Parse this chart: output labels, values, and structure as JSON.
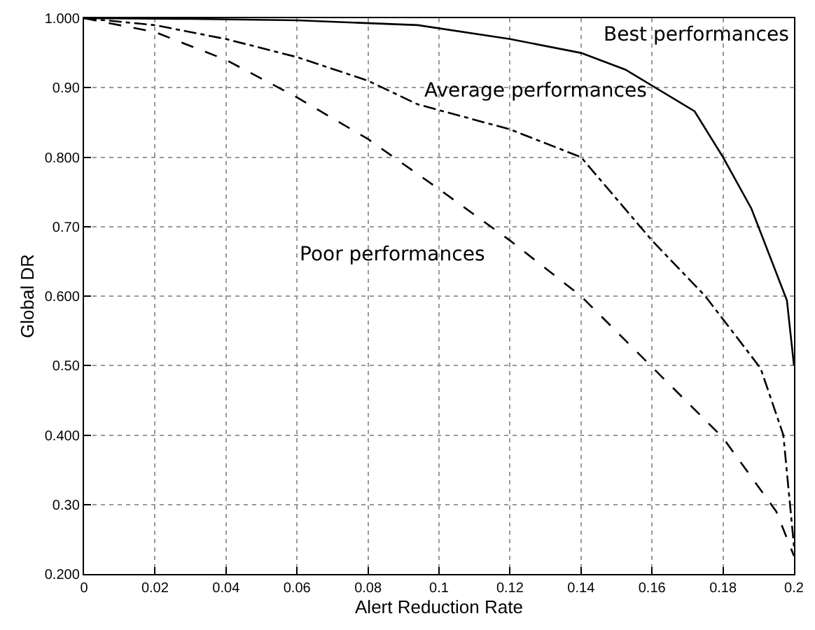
{
  "chart_data": {
    "type": "line",
    "xlabel": "Alert Reduction Rate",
    "ylabel": "Global DR",
    "xlim": [
      0,
      0.2
    ],
    "ylim": [
      0.2,
      1.0
    ],
    "xticks": [
      0,
      0.02,
      0.04,
      0.06,
      0.08,
      0.1,
      0.12,
      0.14,
      0.16,
      0.18,
      0.2
    ],
    "yticks": [
      {
        "value": 0.2,
        "label": "0.200"
      },
      {
        "value": 0.3,
        "label": "0.30"
      },
      {
        "value": 0.4,
        "label": "0.400"
      },
      {
        "value": 0.5,
        "label": "0.50"
      },
      {
        "value": 0.6,
        "label": "0.600"
      },
      {
        "value": 0.7,
        "label": "0.70"
      },
      {
        "value": 0.8,
        "label": "0.800"
      },
      {
        "value": 0.9,
        "label": "0.90"
      },
      {
        "value": 1.0,
        "label": "1.000"
      }
    ],
    "grid": true,
    "marker": "none",
    "series": [
      {
        "color": "#000000",
        "line_style": "solid",
        "x": [
          0,
          0.03,
          0.06,
          0.094,
          0.12,
          0.14,
          0.1525,
          0.172,
          0.18,
          0.188,
          0.193,
          0.198,
          0.2
        ],
        "values": [
          1.0,
          0.999,
          0.997,
          0.99,
          0.97,
          0.95,
          0.926,
          0.866,
          0.8,
          0.726,
          0.66,
          0.594,
          0.5
        ]
      },
      {
        "color": "#000000",
        "line_style": "dashdot",
        "x": [
          0,
          0.02,
          0.04,
          0.06,
          0.08,
          0.094,
          0.12,
          0.14,
          0.15,
          0.16,
          0.175,
          0.1906,
          0.197,
          0.2
        ],
        "values": [
          1.0,
          0.99,
          0.97,
          0.944,
          0.91,
          0.876,
          0.84,
          0.8,
          0.74,
          0.68,
          0.6,
          0.496,
          0.4,
          0.24
        ]
      },
      {
        "color": "#000000",
        "line_style": "dashed",
        "x": [
          0,
          0.02,
          0.04,
          0.06,
          0.08,
          0.1,
          0.12,
          0.14,
          0.16,
          0.18,
          0.195,
          0.2
        ],
        "values": [
          1.0,
          0.98,
          0.94,
          0.886,
          0.826,
          0.754,
          0.68,
          0.6,
          0.498,
          0.396,
          0.29,
          0.226
        ]
      }
    ],
    "annotations": [
      "Best performances",
      "Average performances",
      "Poor performances"
    ]
  }
}
